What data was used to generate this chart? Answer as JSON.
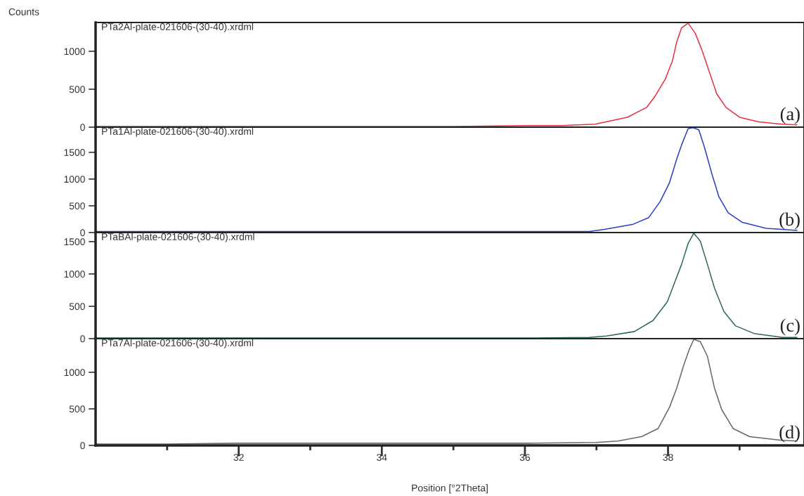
{
  "chart_data": [
    {
      "type": "line",
      "ylabel": "Counts",
      "annotations": [
        "PTa2Al-plate-021606-(30-40).xrdml",
        "(a)"
      ],
      "xlim": [
        30,
        39.9
      ],
      "ylim": [
        0,
        1380
      ],
      "yticks": [
        0,
        500,
        1000
      ],
      "tick_labels": "y",
      "grid": false,
      "legend": false,
      "x": [
        30.0,
        31.0,
        32.0,
        33.0,
        34.0,
        35.0,
        36.0,
        36.5,
        36.98,
        37.43,
        37.7,
        37.82,
        37.96,
        38.06,
        38.12,
        38.19,
        38.28,
        38.38,
        38.48,
        38.58,
        38.68,
        38.81,
        39.0,
        39.27,
        39.59,
        39.8
      ],
      "series": [
        {
          "color": "#e8303f",
          "values": [
            10,
            10,
            10,
            10,
            10,
            10,
            20,
            20,
            40,
            130,
            260,
            410,
            630,
            870,
            1120,
            1310,
            1370,
            1240,
            1000,
            720,
            440,
            260,
            130,
            70,
            40,
            30
          ]
        }
      ]
    },
    {
      "type": "line",
      "annotations": [
        "PTa1Al-plate-021606-(30-40).xrdml",
        "(b)"
      ],
      "xlim": [
        30,
        39.9
      ],
      "ylim": [
        0,
        1970
      ],
      "yticks": [
        0,
        500,
        1000,
        1500
      ],
      "tick_labels": "y",
      "grid": false,
      "legend": false,
      "x": [
        30.0,
        31.0,
        32.0,
        33.0,
        34.0,
        35.0,
        36.0,
        36.9,
        37.11,
        37.5,
        37.73,
        37.89,
        38.02,
        38.12,
        38.19,
        38.28,
        38.35,
        38.43,
        38.51,
        38.61,
        38.71,
        38.84,
        39.04,
        39.37,
        39.8
      ],
      "series": [
        {
          "color": "#2a3fc8",
          "values": [
            20,
            20,
            20,
            20,
            20,
            20,
            20,
            20,
            60,
            150,
            280,
            580,
            930,
            1370,
            1640,
            1940,
            1960,
            1920,
            1590,
            1110,
            670,
            370,
            190,
            80,
            40
          ]
        }
      ]
    },
    {
      "type": "line",
      "annotations": [
        "PTaBAl-plate-021606-(30-40).xrdml",
        "(c)"
      ],
      "xlim": [
        30,
        39.9
      ],
      "ylim": [
        0,
        1640
      ],
      "yticks": [
        0,
        500,
        1000,
        1500
      ],
      "tick_labels": "y",
      "grid": false,
      "legend": false,
      "x": [
        30.0,
        31.0,
        32.0,
        33.0,
        34.0,
        35.0,
        36.0,
        36.9,
        37.14,
        37.53,
        37.79,
        37.99,
        38.1,
        38.19,
        38.28,
        38.36,
        38.45,
        38.55,
        38.65,
        38.78,
        38.94,
        39.2,
        39.6,
        39.8
      ],
      "series": [
        {
          "color": "#2e6b4a",
          "values": [
            10,
            10,
            10,
            10,
            10,
            10,
            10,
            20,
            40,
            110,
            280,
            570,
            890,
            1150,
            1470,
            1630,
            1510,
            1150,
            780,
            420,
            200,
            80,
            20,
            20
          ]
        }
      ]
    },
    {
      "type": "line",
      "xlabel": "Position [°2Theta]",
      "annotations": [
        "PTa7Al-plate-021606-(30-40).xrdml",
        "(d)"
      ],
      "xlim": [
        30,
        39.9
      ],
      "xticks": [
        {
          "value": 31,
          "label": null
        },
        32,
        {
          "value": 33,
          "label": null
        },
        34,
        {
          "value": 35,
          "label": null
        },
        36,
        {
          "value": 37,
          "label": null
        },
        38,
        {
          "value": 39,
          "label": null
        }
      ],
      "ylim": [
        0,
        1460
      ],
      "yticks": [
        0,
        500,
        1000
      ],
      "grid": false,
      "legend": false,
      "x": [
        30.0,
        31.0,
        32.0,
        33.0,
        34.0,
        35.0,
        36.0,
        37.0,
        37.3,
        37.63,
        37.86,
        38.02,
        38.12,
        38.22,
        38.3,
        38.36,
        38.45,
        38.55,
        38.65,
        38.75,
        38.91,
        39.14,
        39.59,
        39.8
      ],
      "series": [
        {
          "color": "#6a6470",
          "values": [
            20,
            20,
            30,
            30,
            30,
            30,
            30,
            40,
            60,
            120,
            230,
            520,
            780,
            1100,
            1320,
            1450,
            1420,
            1220,
            780,
            490,
            230,
            120,
            70,
            60
          ]
        }
      ]
    }
  ]
}
